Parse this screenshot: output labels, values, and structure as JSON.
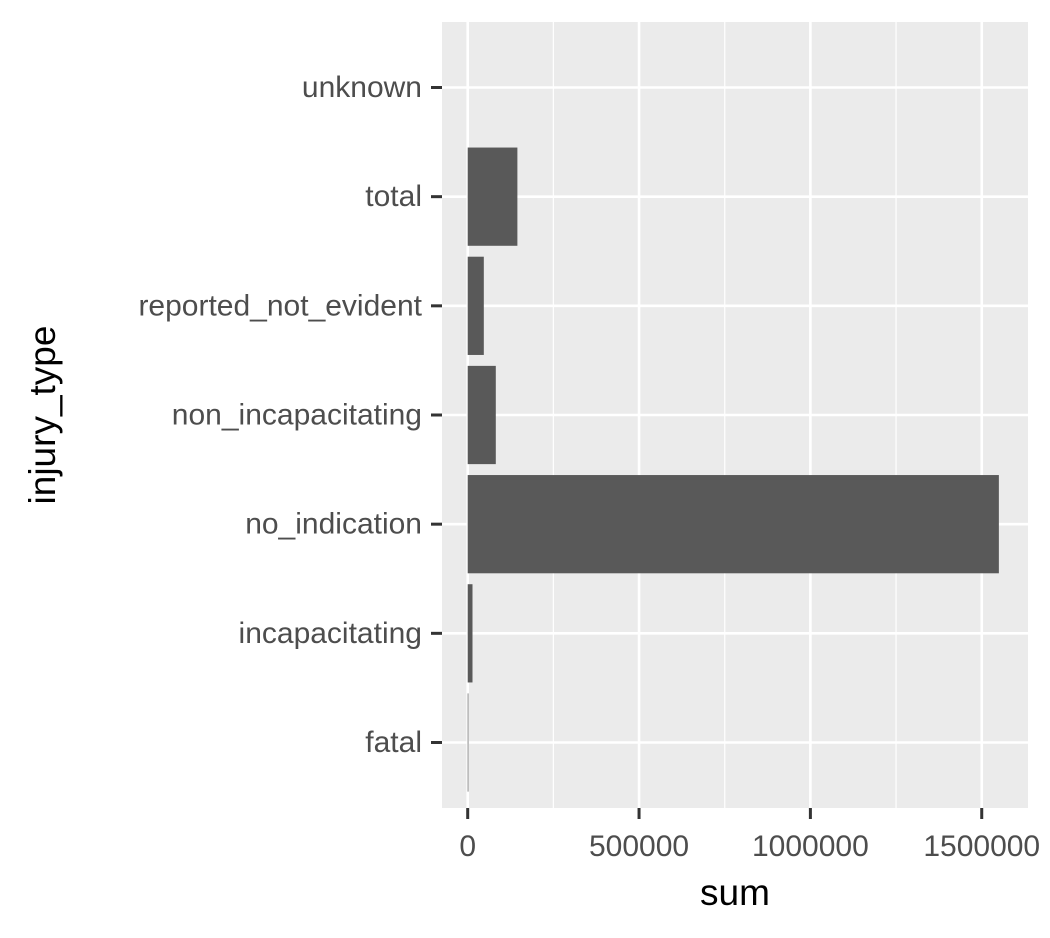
{
  "chart_data": {
    "type": "bar",
    "orientation": "horizontal",
    "xlabel": "sum",
    "ylabel": "injury_type",
    "categories": [
      "fatal",
      "incapacitating",
      "no_indication",
      "non_incapacitating",
      "reported_not_evident",
      "total",
      "unknown"
    ],
    "values": [
      2000,
      14000,
      1550000,
      82000,
      47000,
      145000,
      0
    ],
    "xlim": [
      -75000,
      1635000
    ],
    "x_ticks": [
      0,
      500000,
      1000000,
      1500000
    ],
    "x_tick_labels": [
      "0",
      "500000",
      "1000000",
      "1500000"
    ],
    "grid": true,
    "legend": "none",
    "colors": {
      "panel_background": "#ebebeb",
      "grid_major": "#ffffff",
      "bar_fill": "#595959",
      "tick_label": "#4d4d4d",
      "tick_mark": "#333333",
      "axis_title": "#000000"
    }
  }
}
